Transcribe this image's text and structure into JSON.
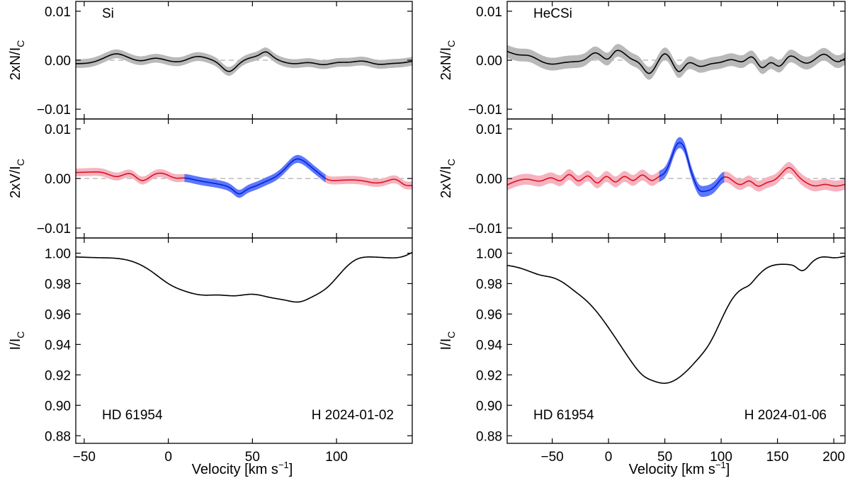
{
  "colors": {
    "null_line": "#000000",
    "null_band": "#b9b9b9",
    "stokes_line": "#e0101c",
    "stokes_band": "#f5b3c0",
    "signal_line": "#0a1fd6",
    "signal_band": "#5a78ff",
    "intensity_line": "#000000"
  },
  "chart_data": [
    {
      "type": "line",
      "panel": "left",
      "element_label": "Si",
      "star_label": "HD 61954",
      "obs_label": "H 2024-01-02",
      "xlabel": "Velocity [km s",
      "xlabel_sup": "−1",
      "xlabel_end": "]",
      "xlim": [
        -55,
        145
      ],
      "xticks": [
        -50,
        0,
        50,
        100
      ],
      "xtick_labels": [
        "−50",
        "0",
        "50",
        "100"
      ],
      "subplots": [
        {
          "kind": "N",
          "ylabel_main": "2xN/I",
          "ylabel_sub": "C",
          "ylim": [
            -0.012,
            0.012
          ],
          "yticks": [
            0.01,
            0.0,
            -0.01
          ],
          "ytick_labels": [
            "0.01",
            "0.00",
            "−0.01"
          ],
          "zero_line": true,
          "x": [
            -55,
            -45,
            -38,
            -31,
            -24,
            -16,
            -8,
            0,
            8,
            16,
            24,
            30,
            36,
            42,
            48,
            54,
            58,
            62,
            68,
            76,
            84,
            92,
            100,
            108,
            116,
            124,
            132,
            140,
            145
          ],
          "y": [
            -0.0007,
            -0.0004,
            0.0005,
            0.0013,
            0.0006,
            -0.0001,
            0.0004,
            -0.0001,
            -0.0002,
            0.0007,
            0.0003,
            -0.0008,
            -0.0023,
            -0.0008,
            0.0004,
            0.0011,
            0.0017,
            0.0008,
            -0.0003,
            -0.0007,
            -0.0005,
            -0.0009,
            -0.0005,
            -0.0004,
            -0.0002,
            -0.0008,
            -0.0007,
            -0.0005,
            -0.0002
          ],
          "err": 0.0009
        },
        {
          "kind": "V",
          "ylabel_main": "2xV/I",
          "ylabel_sub": "C",
          "ylim": [
            -0.012,
            0.012
          ],
          "yticks": [
            0.01,
            0.0,
            -0.01
          ],
          "ytick_labels": [
            "0.01",
            "0.00",
            "−0.01"
          ],
          "zero_line": true,
          "signal_range": [
            9,
            94
          ],
          "x": [
            -55,
            -46,
            -38,
            -30,
            -22,
            -16,
            -9,
            -2,
            4,
            9,
            16,
            24,
            32,
            38,
            42,
            46,
            52,
            58,
            64,
            70,
            76,
            80,
            86,
            90,
            94,
            100,
            108,
            116,
            124,
            130,
            136,
            140,
            145
          ],
          "y": [
            0.0012,
            0.0013,
            0.0011,
            0.0004,
            0.0009,
            -0.0004,
            0.0007,
            0.0009,
            0.0001,
            0.0001,
            -0.0003,
            -0.0008,
            -0.0013,
            -0.0022,
            -0.0031,
            -0.0024,
            -0.0015,
            -0.0006,
            0.0004,
            0.0022,
            0.0039,
            0.0036,
            0.002,
            0.0009,
            -0.0001,
            -0.0004,
            -0.0003,
            -0.0005,
            -0.0009,
            -0.0005,
            -0.0003,
            -0.0012,
            -0.0014
          ],
          "err": 0.0008
        },
        {
          "kind": "I",
          "ylabel_main": "I/I",
          "ylabel_sub": "C",
          "ylim": [
            0.875,
            1.01
          ],
          "yticks": [
            1.0,
            0.98,
            0.96,
            0.94,
            0.92,
            0.9,
            0.88
          ],
          "ytick_labels": [
            "1.00",
            "0.98",
            "0.96",
            "0.94",
            "0.92",
            "0.90",
            "0.88"
          ],
          "zero_line": false,
          "x": [
            -55,
            -40,
            -30,
            -20,
            -10,
            0,
            10,
            20,
            30,
            40,
            50,
            60,
            70,
            78,
            85,
            95,
            105,
            112,
            120,
            130,
            140,
            145
          ],
          "y": [
            0.9975,
            0.997,
            0.9965,
            0.994,
            0.988,
            0.98,
            0.975,
            0.9725,
            0.9725,
            0.972,
            0.973,
            0.971,
            0.969,
            0.968,
            0.971,
            0.978,
            0.99,
            0.996,
            0.9975,
            0.997,
            0.998,
            1.0005
          ]
        }
      ]
    },
    {
      "type": "line",
      "panel": "right",
      "element_label": "HeCSi",
      "star_label": "HD 61954",
      "obs_label": "H 2024-01-06",
      "xlabel": "Velocity [km s",
      "xlabel_sup": "−1",
      "xlabel_end": "]",
      "xlim": [
        -90,
        210
      ],
      "xticks": [
        -50,
        0,
        50,
        100,
        150,
        200
      ],
      "xtick_labels": [
        "−50",
        "0",
        "50",
        "100",
        "150",
        "200"
      ],
      "subplots": [
        {
          "kind": "N",
          "ylabel_main": "2xN/I",
          "ylabel_sub": "C",
          "ylim": [
            -0.012,
            0.012
          ],
          "yticks": [
            0.01,
            0.0,
            -0.01
          ],
          "ytick_labels": [
            "0.01",
            "0.00",
            "−0.01"
          ],
          "zero_line": true,
          "x": [
            -90,
            -80,
            -70,
            -60,
            -50,
            -40,
            -30,
            -20,
            -12,
            -6,
            0,
            6,
            12,
            20,
            28,
            36,
            44,
            50,
            56,
            62,
            70,
            80,
            90,
            100,
            110,
            120,
            128,
            136,
            144,
            152,
            160,
            168,
            176,
            184,
            192,
            198,
            204,
            210
          ],
          "y": [
            0.0018,
            0.0011,
            0.0009,
            -0.0002,
            -0.0008,
            -0.0005,
            -0.0003,
            0.0003,
            0.0015,
            0.0008,
            0.0003,
            0.0018,
            0.0017,
            0.0003,
            -0.0008,
            -0.0027,
            -0.0003,
            0.0013,
            -0.0002,
            -0.0023,
            -0.0007,
            -0.0012,
            -0.0008,
            -0.0004,
            0.0001,
            -0.0002,
            0.0006,
            -0.0015,
            -0.0005,
            -0.0012,
            0.0007,
            0.0002,
            -0.0006,
            0.0003,
            0.0012,
            0.0003,
            -0.0003,
            0.0004
          ],
          "err": 0.0013
        },
        {
          "kind": "V",
          "ylabel_main": "2xV/I",
          "ylabel_sub": "C",
          "ylim": [
            -0.012,
            0.012
          ],
          "yticks": [
            0.01,
            0.0,
            -0.01
          ],
          "ytick_labels": [
            "0.01",
            "0.00",
            "−0.01"
          ],
          "zero_line": true,
          "signal_range": [
            45,
            103
          ],
          "x": [
            -90,
            -80,
            -70,
            -60,
            -50,
            -42,
            -35,
            -27,
            -18,
            -10,
            -2,
            6,
            14,
            22,
            30,
            38,
            45,
            50,
            55,
            60,
            64,
            68,
            72,
            76,
            80,
            85,
            90,
            96,
            100,
            103,
            110,
            118,
            125,
            132,
            140,
            148,
            156,
            160,
            168,
            176,
            184,
            192,
            200,
            210
          ],
          "y": [
            -0.0013,
            -0.0004,
            -0.0002,
            -0.0005,
            0.0001,
            -0.0004,
            0.0008,
            -0.0005,
            0.0005,
            -0.0009,
            0.0004,
            -0.0007,
            0.0004,
            -0.0004,
            0.0007,
            -0.0004,
            0.0004,
            0.0012,
            0.0036,
            0.0066,
            0.0072,
            0.0058,
            0.0025,
            -0.0003,
            -0.0022,
            -0.0026,
            -0.0023,
            -0.0012,
            -0.0001,
            0.0003,
            -0.0004,
            -0.0012,
            -0.0005,
            -0.0015,
            -0.0009,
            -0.0002,
            0.0016,
            0.0022,
            0.0006,
            -0.0009,
            -0.0015,
            -0.0012,
            -0.0015,
            -0.0012
          ],
          "err": 0.0011
        },
        {
          "kind": "I",
          "ylabel_main": "I/I",
          "ylabel_sub": "C",
          "ylim": [
            0.875,
            1.01
          ],
          "yticks": [
            1.0,
            0.98,
            0.96,
            0.94,
            0.92,
            0.9,
            0.88
          ],
          "ytick_labels": [
            "1.00",
            "0.98",
            "0.96",
            "0.94",
            "0.92",
            "0.90",
            "0.88"
          ],
          "zero_line": false,
          "x": [
            -90,
            -80,
            -70,
            -60,
            -50,
            -40,
            -30,
            -20,
            -10,
            0,
            10,
            20,
            30,
            40,
            50,
            60,
            70,
            80,
            90,
            100,
            110,
            120,
            125,
            130,
            140,
            150,
            160,
            165,
            172,
            180,
            190,
            200,
            210
          ],
          "y": [
            0.992,
            0.9905,
            0.988,
            0.9855,
            0.984,
            0.9805,
            0.975,
            0.969,
            0.961,
            0.951,
            0.94,
            0.929,
            0.92,
            0.916,
            0.9145,
            0.917,
            0.923,
            0.931,
            0.941,
            0.956,
            0.97,
            0.977,
            0.979,
            0.983,
            0.99,
            0.9925,
            0.9925,
            0.9915,
            0.9885,
            0.9935,
            0.9975,
            0.997,
            0.998
          ]
        }
      ]
    }
  ]
}
